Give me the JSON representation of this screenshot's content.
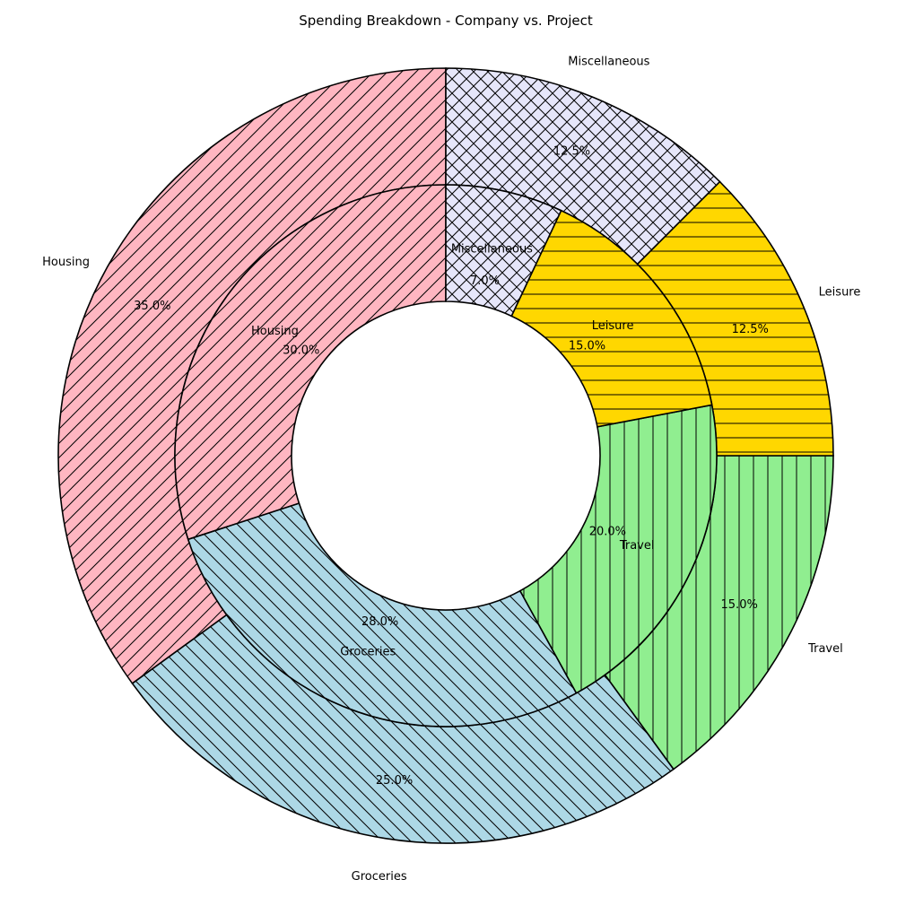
{
  "chart_data": {
    "type": "pie",
    "title": "Spending Breakdown - Company vs. Project",
    "categories": [
      "Housing",
      "Groceries",
      "Travel",
      "Leisure",
      "Miscellaneous"
    ],
    "colors": [
      "#ffb6c1",
      "#add8e6",
      "#90ee90",
      "#ffd700",
      "#e6e6fa"
    ],
    "hatches": [
      "diagonal-up",
      "diagonal-down",
      "vertical",
      "horizontal",
      "cross"
    ],
    "series": [
      {
        "ring": "outer",
        "values": [
          35.0,
          25.0,
          15.0,
          12.5,
          12.5
        ],
        "pct_labels": [
          "35.0%",
          "25.0%",
          "15.0%",
          "12.5%",
          "12.5%"
        ]
      },
      {
        "ring": "inner",
        "values": [
          30.0,
          28.0,
          20.0,
          15.0,
          7.0
        ],
        "pct_labels": [
          "30.0%",
          "28.0%",
          "20.0%",
          "15.0%",
          "7.0%"
        ]
      }
    ],
    "start_angle_deg": 90,
    "direction": "counterclockwise",
    "legend": "none"
  }
}
